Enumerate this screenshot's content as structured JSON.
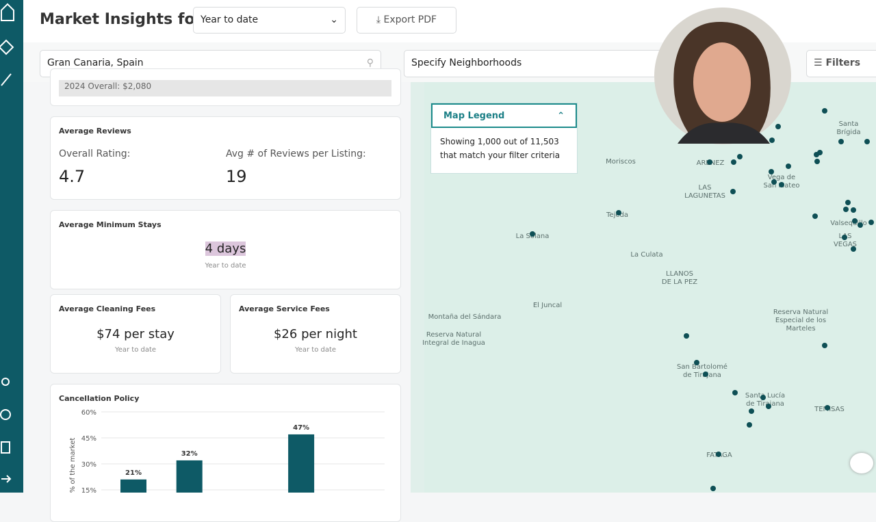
{
  "header": {
    "title": "Market Insights for",
    "period": "Year to date",
    "export": "Export PDF"
  },
  "search": {
    "location": "Gran Canaria, Spain",
    "neighborhoods": "Specify Neighborhoods",
    "filters": "Filters"
  },
  "cards": {
    "overall": "2024 Overall: $2,080",
    "reviews": {
      "title": "Average Reviews",
      "rating_label": "Overall Rating:",
      "rating": "4.7",
      "count_label": "Avg # of Reviews per Listing:",
      "count": "19"
    },
    "min_stay": {
      "title": "Average Minimum Stays",
      "value": "4 days",
      "period": "Year to date"
    },
    "cleaning": {
      "title": "Average Cleaning Fees",
      "value": "$74 per stay",
      "period": "Year to date"
    },
    "service": {
      "title": "Average Service Fees",
      "value": "$26 per night",
      "period": "Year to date"
    }
  },
  "chart_data": {
    "type": "bar",
    "title": "Cancellation Policy",
    "ylabel": "% of the market",
    "categories": [
      null,
      null,
      null,
      null
    ],
    "values": [
      21,
      32,
      null,
      47
    ],
    "value_labels": [
      "21%",
      "32%",
      null,
      "47%"
    ],
    "color": "#0e5a66",
    "ylim": [
      0,
      60
    ],
    "yticks": [
      {
        "value": 15,
        "label": "15%"
      },
      {
        "value": 30,
        "label": "30%"
      },
      {
        "value": 45,
        "label": "45%"
      },
      {
        "value": 60,
        "label": "60%"
      }
    ],
    "grid": true
  },
  "map": {
    "legend": {
      "title": "Map Legend",
      "text": "Showing 1,000 out of 11,503\nthat match your filter criteria"
    },
    "places": [
      {
        "label": "Santa Brígida"
      },
      {
        "label": "Moriscos"
      },
      {
        "label": "ARENEZ"
      },
      {
        "label": "LAS\nLAGUNETAS"
      },
      {
        "label": "Vega de\nSan Mateo"
      },
      {
        "label": "Tejeda"
      },
      {
        "label": "La Solana"
      },
      {
        "label": "La Culata"
      },
      {
        "label": "LLANOS\nDE LA PEZ"
      },
      {
        "label": "El Juncal"
      },
      {
        "label": "Montaña del Sándara"
      },
      {
        "label": "Reserva Natural\nIntegral de Inagua"
      },
      {
        "label": "Reserva Natural\nEspecial de los Marteles"
      },
      {
        "label": "Valsequillo"
      },
      {
        "label": "LAS VEGAS"
      },
      {
        "label": "San Bartolomé\nde Tirajana"
      },
      {
        "label": "Santa Lucía\nde Tirajana"
      },
      {
        "label": "TEMISAS"
      },
      {
        "label": "FATAGA"
      }
    ]
  }
}
